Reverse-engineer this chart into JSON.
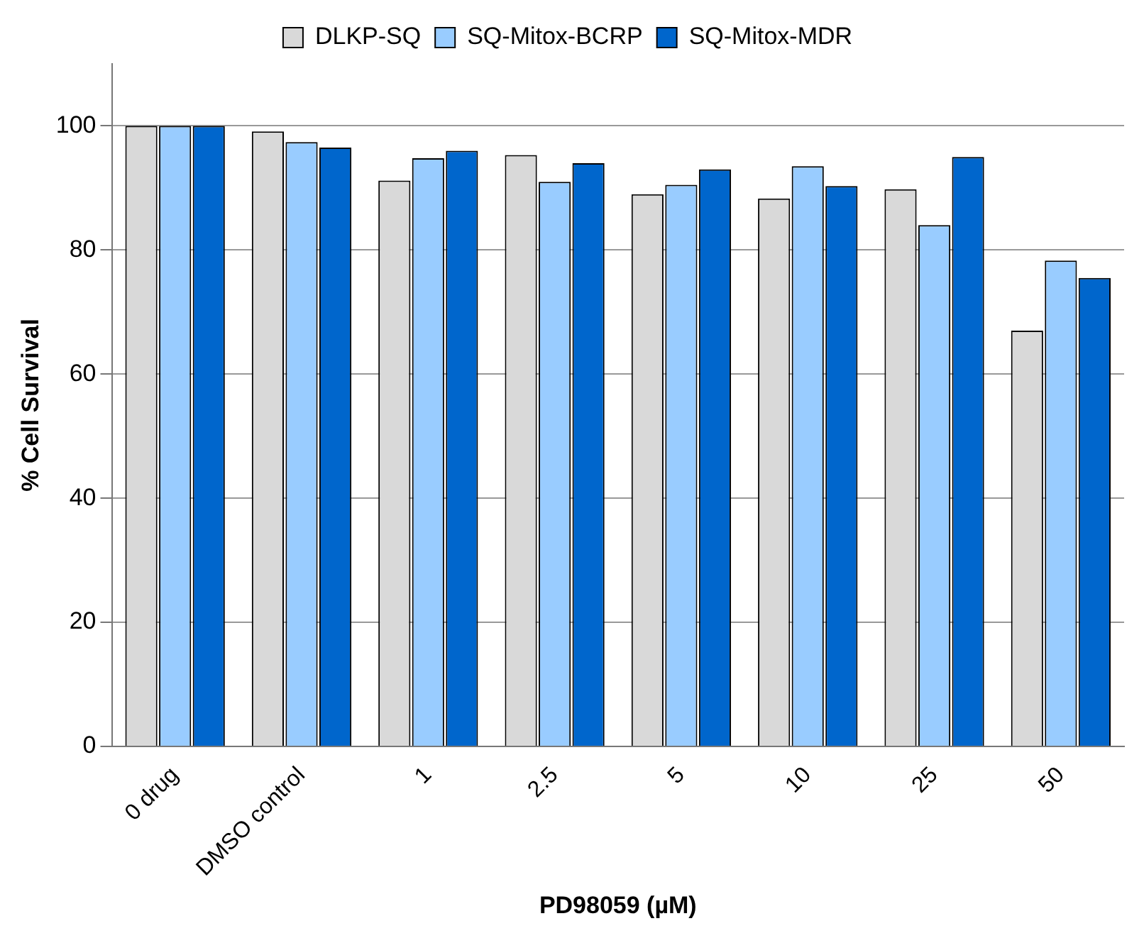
{
  "chart_data": {
    "type": "bar",
    "xlabel": "PD98059 (µM)",
    "ylabel": "% Cell Survival",
    "categories": [
      "0 drug",
      "DMSO control",
      "1",
      "2.5",
      "5",
      "10",
      "25",
      "50"
    ],
    "series": [
      {
        "name": "DLKP-SQ",
        "color": "#d9d9d9",
        "values": [
          100,
          99.1,
          91.2,
          95.3,
          89,
          88.3,
          89.8,
          67
        ]
      },
      {
        "name": "SQ-Mitox-BCRP",
        "color": "#99ccff",
        "values": [
          100,
          97.4,
          94.8,
          91,
          90.5,
          93.5,
          84,
          78.3
        ]
      },
      {
        "name": "SQ-Mitox-MDR",
        "color": "#0066cc",
        "values": [
          100,
          96.5,
          96,
          94,
          93,
          90.3,
          95,
          75.5
        ]
      }
    ],
    "ylim": [
      0,
      110
    ],
    "yticks": [
      0,
      20,
      40,
      60,
      80,
      100
    ],
    "grid": "y",
    "legend": "top"
  }
}
